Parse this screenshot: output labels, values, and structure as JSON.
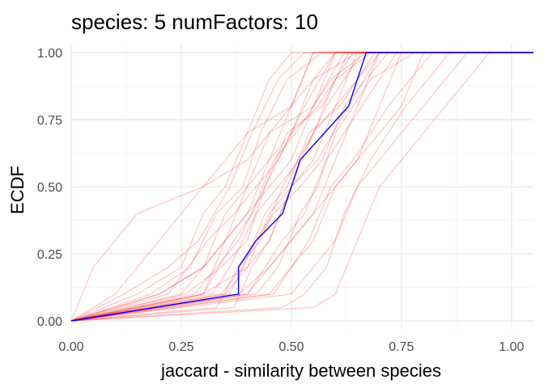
{
  "chart_data": {
    "type": "line",
    "title": "species:  5  numFactors:  10",
    "xlabel": "jaccard - similarity between species",
    "ylabel": "ECDF",
    "xlim": [
      0.0,
      1.05
    ],
    "ylim": [
      -0.03,
      1.03
    ],
    "x_ticks": [
      0.0,
      0.25,
      0.5,
      0.75,
      1.0
    ],
    "x_tick_labels": [
      "0.00",
      "0.25",
      "0.50",
      "0.75",
      "1.00"
    ],
    "y_ticks": [
      0.0,
      0.25,
      0.5,
      0.75,
      1.0
    ],
    "y_tick_labels": [
      "0.00",
      "0.25",
      "0.50",
      "0.75",
      "1.00"
    ],
    "grid": true,
    "legend": "none",
    "colors": {
      "background_lines": "#ff0000",
      "highlight_line": "#0000ff",
      "grid_major": "#ebebeb",
      "grid_minor": "#f5f5f5"
    },
    "series": [
      {
        "x": [
          0.0,
          0.38,
          0.38,
          0.42,
          0.48,
          0.52,
          0.63,
          0.67,
          1.05
        ],
        "y": [
          0.0,
          0.1,
          0.2,
          0.3,
          0.4,
          0.6,
          0.8,
          1.0,
          1.0
        ],
        "highlight": true
      },
      {
        "x": [
          0.0,
          0.05,
          0.15,
          0.3,
          0.4,
          0.45,
          0.5,
          0.55,
          1.05
        ],
        "y": [
          0.0,
          0.2,
          0.4,
          0.5,
          0.6,
          0.7,
          0.8,
          1.0,
          1.0
        ]
      },
      {
        "x": [
          0.0,
          0.1,
          0.2,
          0.3,
          0.35,
          0.4,
          0.45,
          0.5,
          1.05
        ],
        "y": [
          0.0,
          0.1,
          0.3,
          0.5,
          0.6,
          0.7,
          0.9,
          1.0,
          1.0
        ]
      },
      {
        "x": [
          0.0,
          0.2,
          0.3,
          0.35,
          0.4,
          0.45,
          0.5,
          0.6,
          1.05
        ],
        "y": [
          0.0,
          0.1,
          0.2,
          0.3,
          0.5,
          0.6,
          0.8,
          1.0,
          1.0
        ]
      },
      {
        "x": [
          0.0,
          0.25,
          0.3,
          0.35,
          0.4,
          0.45,
          0.55,
          0.6,
          1.05
        ],
        "y": [
          0.0,
          0.1,
          0.2,
          0.4,
          0.5,
          0.7,
          0.8,
          1.0,
          1.0
        ]
      },
      {
        "x": [
          0.0,
          0.3,
          0.35,
          0.4,
          0.45,
          0.5,
          0.55,
          0.65,
          1.05
        ],
        "y": [
          0.0,
          0.1,
          0.3,
          0.4,
          0.6,
          0.7,
          0.9,
          1.0,
          1.0
        ]
      },
      {
        "x": [
          0.0,
          0.3,
          0.4,
          0.45,
          0.5,
          0.55,
          0.6,
          0.65,
          1.05
        ],
        "y": [
          0.0,
          0.1,
          0.2,
          0.3,
          0.5,
          0.6,
          0.8,
          1.0,
          1.0
        ]
      },
      {
        "x": [
          0.0,
          0.35,
          0.4,
          0.45,
          0.5,
          0.55,
          0.6,
          0.7,
          1.05
        ],
        "y": [
          0.0,
          0.1,
          0.2,
          0.4,
          0.5,
          0.7,
          0.8,
          1.0,
          1.0
        ]
      },
      {
        "x": [
          0.0,
          0.38,
          0.45,
          0.5,
          0.55,
          0.6,
          0.65,
          0.7,
          1.05
        ],
        "y": [
          0.0,
          0.1,
          0.2,
          0.3,
          0.4,
          0.6,
          0.8,
          1.0,
          1.0
        ]
      },
      {
        "x": [
          0.0,
          0.4,
          0.45,
          0.5,
          0.6,
          0.65,
          0.7,
          0.75,
          1.05
        ],
        "y": [
          0.0,
          0.1,
          0.2,
          0.3,
          0.5,
          0.6,
          0.8,
          1.0,
          1.0
        ]
      },
      {
        "x": [
          0.0,
          0.45,
          0.5,
          0.55,
          0.6,
          0.65,
          0.75,
          0.8,
          1.05
        ],
        "y": [
          0.0,
          0.1,
          0.2,
          0.3,
          0.5,
          0.6,
          0.8,
          1.0,
          1.0
        ]
      },
      {
        "x": [
          0.0,
          0.5,
          0.55,
          0.6,
          0.65,
          0.7,
          0.8,
          0.9,
          1.05
        ],
        "y": [
          0.0,
          0.1,
          0.2,
          0.3,
          0.5,
          0.6,
          0.8,
          1.0,
          1.0
        ]
      },
      {
        "x": [
          0.0,
          0.55,
          0.6,
          0.65,
          0.7,
          0.75,
          0.85,
          0.95,
          1.05
        ],
        "y": [
          0.0,
          0.05,
          0.1,
          0.3,
          0.5,
          0.6,
          0.8,
          1.0,
          1.0
        ]
      },
      {
        "x": [
          0.0,
          0.15,
          0.25,
          0.3,
          0.35,
          0.4,
          0.5,
          0.55,
          1.05
        ],
        "y": [
          0.0,
          0.1,
          0.2,
          0.4,
          0.5,
          0.7,
          0.8,
          1.0,
          1.0
        ]
      },
      {
        "x": [
          0.0,
          0.2,
          0.3,
          0.35,
          0.45,
          0.5,
          0.55,
          0.62,
          1.05
        ],
        "y": [
          0.0,
          0.1,
          0.2,
          0.3,
          0.5,
          0.6,
          0.8,
          1.0,
          1.0
        ]
      },
      {
        "x": [
          0.0,
          0.32,
          0.36,
          0.42,
          0.47,
          0.52,
          0.58,
          0.66,
          1.05
        ],
        "y": [
          0.0,
          0.1,
          0.2,
          0.4,
          0.5,
          0.6,
          0.8,
          1.0,
          1.0
        ]
      },
      {
        "x": [
          0.0,
          0.33,
          0.38,
          0.43,
          0.48,
          0.55,
          0.6,
          0.68,
          1.05
        ],
        "y": [
          0.0,
          0.05,
          0.2,
          0.3,
          0.5,
          0.7,
          0.9,
          1.0,
          1.0
        ]
      },
      {
        "x": [
          0.0,
          0.36,
          0.42,
          0.46,
          0.52,
          0.57,
          0.62,
          0.72,
          1.05
        ],
        "y": [
          0.0,
          0.1,
          0.3,
          0.4,
          0.5,
          0.6,
          0.8,
          1.0,
          1.0
        ]
      },
      {
        "x": [
          0.0,
          0.4,
          0.44,
          0.48,
          0.53,
          0.58,
          0.66,
          0.74,
          1.05
        ],
        "y": [
          0.0,
          0.1,
          0.2,
          0.3,
          0.4,
          0.6,
          0.8,
          1.0,
          1.0
        ]
      },
      {
        "x": [
          0.0,
          0.42,
          0.47,
          0.52,
          0.56,
          0.6,
          0.68,
          0.78,
          1.05
        ],
        "y": [
          0.0,
          0.1,
          0.2,
          0.4,
          0.5,
          0.7,
          0.9,
          1.0,
          1.0
        ]
      },
      {
        "x": [
          0.0,
          0.28,
          0.33,
          0.38,
          0.44,
          0.5,
          0.56,
          0.64,
          1.05
        ],
        "y": [
          0.0,
          0.1,
          0.2,
          0.3,
          0.5,
          0.7,
          0.8,
          1.0,
          1.0
        ]
      },
      {
        "x": [
          0.0,
          0.3,
          0.37,
          0.41,
          0.46,
          0.51,
          0.59,
          0.67,
          1.05
        ],
        "y": [
          0.0,
          0.1,
          0.3,
          0.4,
          0.6,
          0.7,
          0.9,
          1.0,
          1.0
        ]
      },
      {
        "x": [
          0.0,
          0.34,
          0.39,
          0.44,
          0.49,
          0.54,
          0.61,
          0.69,
          1.05
        ],
        "y": [
          0.0,
          0.1,
          0.2,
          0.4,
          0.5,
          0.7,
          0.8,
          1.0,
          1.0
        ]
      },
      {
        "x": [
          0.0,
          0.37,
          0.41,
          0.45,
          0.5,
          0.56,
          0.63,
          0.7,
          1.05
        ],
        "y": [
          0.0,
          0.05,
          0.2,
          0.3,
          0.5,
          0.6,
          0.8,
          1.0,
          1.0
        ]
      },
      {
        "x": [
          0.0,
          0.46,
          0.5,
          0.54,
          0.59,
          0.64,
          0.72,
          0.82,
          1.05
        ],
        "y": [
          0.0,
          0.1,
          0.2,
          0.3,
          0.5,
          0.6,
          0.8,
          1.0,
          1.0
        ]
      },
      {
        "x": [
          0.0,
          0.48,
          0.53,
          0.58,
          0.62,
          0.68,
          0.76,
          0.86,
          1.05
        ],
        "y": [
          0.0,
          0.05,
          0.1,
          0.2,
          0.4,
          0.6,
          0.8,
          1.0,
          1.0
        ]
      },
      {
        "x": [
          0.0,
          0.18,
          0.27,
          0.33,
          0.39,
          0.43,
          0.49,
          0.57,
          1.05
        ],
        "y": [
          0.0,
          0.1,
          0.2,
          0.4,
          0.5,
          0.7,
          0.9,
          1.0,
          1.0
        ]
      },
      {
        "x": [
          0.0,
          0.22,
          0.31,
          0.37,
          0.42,
          0.47,
          0.53,
          0.6,
          1.05
        ],
        "y": [
          0.0,
          0.1,
          0.3,
          0.4,
          0.5,
          0.6,
          0.8,
          1.0,
          1.0
        ]
      },
      {
        "x": [
          0.0,
          0.26,
          0.34,
          0.4,
          0.44,
          0.49,
          0.57,
          0.63,
          1.05
        ],
        "y": [
          0.0,
          0.1,
          0.2,
          0.3,
          0.5,
          0.7,
          0.8,
          1.0,
          1.0
        ]
      },
      {
        "x": [
          0.0,
          0.12,
          0.22,
          0.29,
          0.36,
          0.41,
          0.47,
          0.53,
          1.05
        ],
        "y": [
          0.0,
          0.1,
          0.2,
          0.3,
          0.5,
          0.7,
          0.9,
          1.0,
          1.0
        ]
      }
    ]
  }
}
